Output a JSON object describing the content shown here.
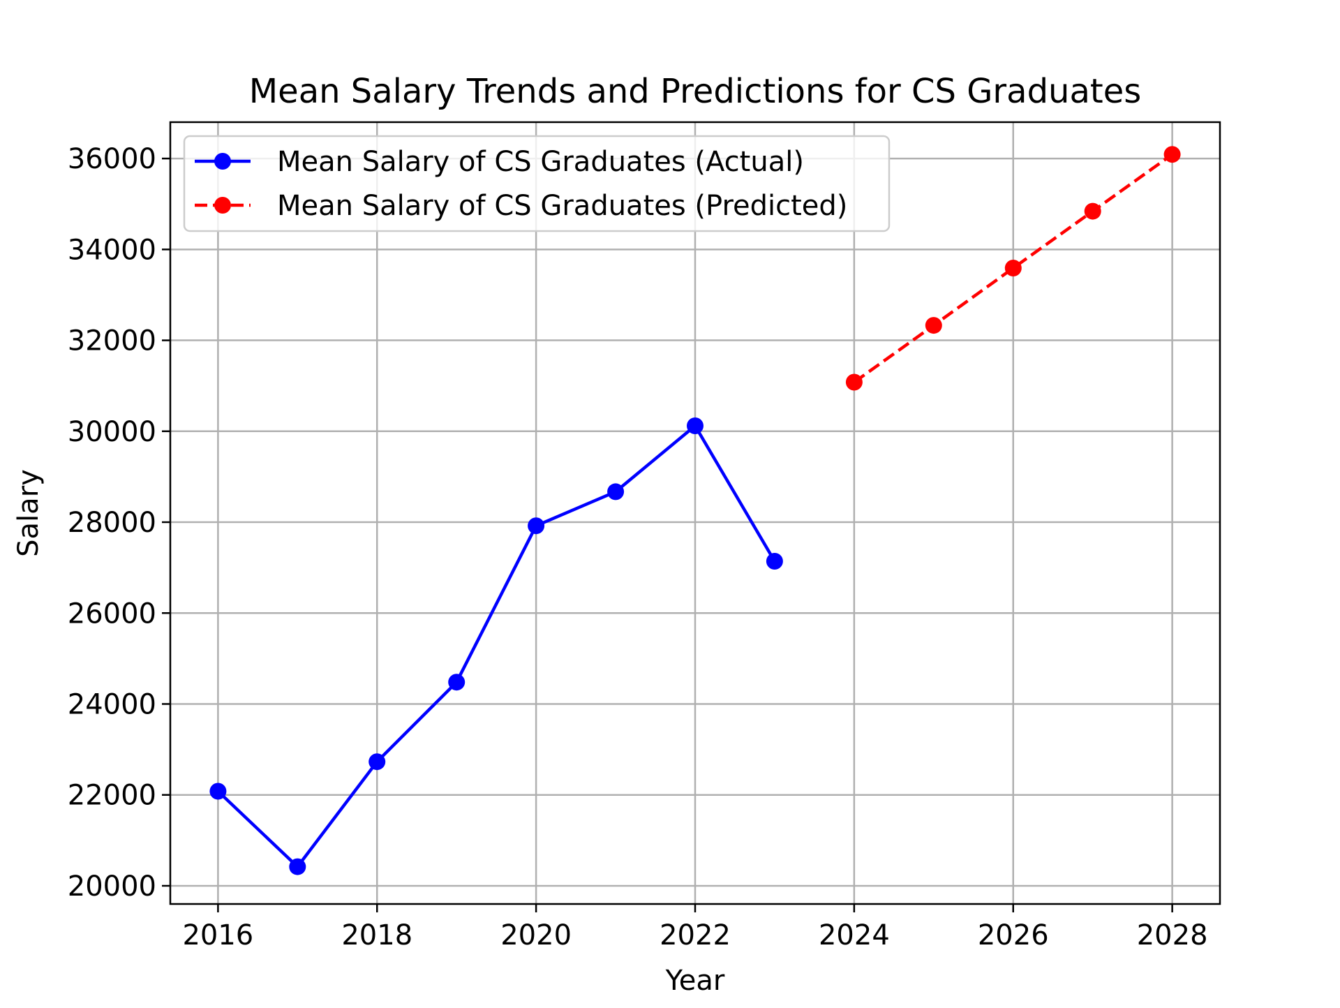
{
  "chart_data": {
    "type": "line",
    "title": "Mean Salary Trends and Predictions for CS Graduates",
    "xlabel": "Year",
    "ylabel": "Salary",
    "xlim": [
      2015.4,
      2028.6
    ],
    "ylim": [
      19600,
      36800
    ],
    "x_ticks": [
      2016,
      2018,
      2020,
      2022,
      2024,
      2026,
      2028
    ],
    "y_ticks": [
      20000,
      22000,
      24000,
      26000,
      28000,
      30000,
      32000,
      34000,
      36000
    ],
    "grid": true,
    "legend_position": "top-left",
    "series": [
      {
        "name": "Mean Salary of CS Graduates (Actual)",
        "color": "#0000ff",
        "line_style": "solid",
        "marker": "circle",
        "x": [
          2016,
          2017,
          2018,
          2019,
          2020,
          2021,
          2022,
          2023
        ],
        "y": [
          22080,
          20420,
          22730,
          24480,
          27920,
          28670,
          30120,
          27140
        ]
      },
      {
        "name": "Mean Salary of CS Graduates (Predicted)",
        "color": "#ff0000",
        "line_style": "dashed",
        "marker": "circle",
        "x": [
          2024,
          2025,
          2026,
          2027,
          2028
        ],
        "y": [
          31080,
          32330,
          33590,
          34840,
          36090
        ]
      }
    ]
  }
}
